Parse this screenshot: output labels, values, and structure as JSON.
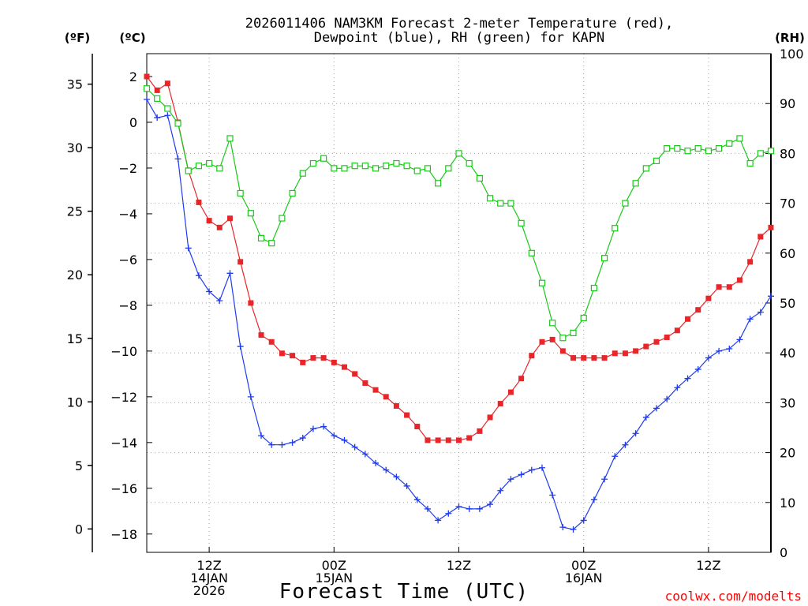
{
  "title_line1": "2026011406 NAM3KM Forecast 2-meter Temperature (red),",
  "title_line2": "Dewpoint (blue), RH (green) for KAPN",
  "unit_f": "(ºF)",
  "unit_c": "(ºC)",
  "unit_rh": "(RH)",
  "xlabel": "Forecast Time (UTC)",
  "credit": "coolwx.com/modelts",
  "colors": {
    "temperature": "#e8262a",
    "dewpoint": "#1f3bf0",
    "rh": "#19c919",
    "grid": "#a0a0a0"
  },
  "chart_data": {
    "type": "line",
    "title": "2026011406 NAM3KM Forecast 2-meter Temperature (red), Dewpoint (blue), RH (green) for KAPN",
    "xlabel": "Forecast Time (UTC)",
    "x_unit": "forecast hour (from 2026-01-14 06Z)",
    "xlim": [
      0,
      60
    ],
    "x_ticks": [
      {
        "x": 6,
        "lines": [
          "12Z",
          "14JAN",
          "2026"
        ]
      },
      {
        "x": 18,
        "lines": [
          "00Z",
          "15JAN"
        ]
      },
      {
        "x": 30,
        "lines": [
          "12Z"
        ]
      },
      {
        "x": 42,
        "lines": [
          "00Z",
          "16JAN"
        ]
      },
      {
        "x": 54,
        "lines": [
          "12Z"
        ]
      }
    ],
    "y_left_c": {
      "label": "(ºC)",
      "ylim": [
        -18.8,
        3.0
      ],
      "ticks": [
        2,
        0,
        -2,
        -4,
        -6,
        -8,
        -10,
        -12,
        -14,
        -16,
        -18
      ]
    },
    "y_left_f": {
      "label": "(ºF)",
      "ticks": [
        35,
        30,
        25,
        20,
        15,
        10,
        5,
        0
      ]
    },
    "y_right_rh": {
      "label": "(RH)",
      "ylim": [
        0,
        100
      ],
      "ticks": [
        100,
        90,
        80,
        70,
        60,
        50,
        40,
        30,
        20,
        10,
        0
      ]
    },
    "grid": true,
    "x": [
      0,
      1,
      2,
      3,
      4,
      5,
      6,
      7,
      8,
      9,
      10,
      11,
      12,
      13,
      14,
      15,
      16,
      17,
      18,
      19,
      20,
      21,
      22,
      23,
      24,
      25,
      26,
      27,
      28,
      29,
      30,
      31,
      32,
      33,
      34,
      35,
      36,
      37,
      38,
      39,
      40,
      41,
      42,
      43,
      44,
      45,
      46,
      47,
      48,
      49,
      50,
      51,
      52,
      53,
      54,
      55,
      56,
      57,
      58,
      59,
      60
    ],
    "series": [
      {
        "name": "Temperature",
        "units": "C",
        "marker": "filled-square",
        "values": [
          2.0,
          1.4,
          1.7,
          0.0,
          -2.1,
          -3.5,
          -4.3,
          -4.6,
          -4.2,
          -6.1,
          -7.9,
          -9.3,
          -9.6,
          -10.1,
          -10.2,
          -10.5,
          -10.3,
          -10.3,
          -10.5,
          -10.7,
          -11.0,
          -11.4,
          -11.7,
          -12.0,
          -12.4,
          -12.8,
          -13.3,
          -13.9,
          -13.9,
          -13.9,
          -13.9,
          -13.8,
          -13.5,
          -12.9,
          -12.3,
          -11.8,
          -11.2,
          -10.2,
          -9.6,
          -9.5,
          -10.0,
          -10.3,
          -10.3,
          -10.3,
          -10.3,
          -10.1,
          -10.1,
          -10.0,
          -9.8,
          -9.6,
          -9.4,
          -9.1,
          -8.6,
          -8.2,
          -7.7,
          -7.2,
          -7.2,
          -6.9,
          -6.1,
          -5.0,
          -4.6
        ]
      },
      {
        "name": "Dewpoint",
        "units": "C",
        "marker": "plus",
        "values": [
          1.0,
          0.2,
          0.3,
          -1.6,
          -5.5,
          -6.7,
          -7.4,
          -7.8,
          -6.6,
          -9.8,
          -12.0,
          -13.7,
          -14.1,
          -14.1,
          -14.0,
          -13.8,
          -13.4,
          -13.3,
          -13.7,
          -13.9,
          -14.2,
          -14.5,
          -14.9,
          -15.2,
          -15.5,
          -15.9,
          -16.5,
          -16.9,
          -17.4,
          -17.1,
          -16.8,
          -16.9,
          -16.9,
          -16.7,
          -16.1,
          -15.6,
          -15.4,
          -15.2,
          -15.1,
          -16.3,
          -17.7,
          -17.8,
          -17.4,
          -16.5,
          -15.6,
          -14.6,
          -14.1,
          -13.6,
          -12.9,
          -12.5,
          -12.1,
          -11.6,
          -11.2,
          -10.8,
          -10.3,
          -10.0,
          -9.9,
          -9.5,
          -8.6,
          -8.3,
          -7.6
        ]
      },
      {
        "name": "Relative Humidity",
        "units": "%",
        "marker": "open-square",
        "values": [
          93,
          91,
          89,
          86,
          76.5,
          77.5,
          78,
          77,
          83,
          72,
          68,
          63,
          62,
          67,
          72,
          76,
          78,
          79,
          77,
          77,
          77.5,
          77.5,
          77,
          77.5,
          78,
          77.5,
          76.5,
          77,
          74,
          77,
          80,
          78,
          75,
          71,
          70,
          70,
          66,
          60,
          54,
          46,
          43,
          44,
          47,
          53,
          59,
          65,
          70,
          74,
          77,
          78.5,
          81,
          81,
          80.5,
          81,
          80.5,
          81,
          82,
          83,
          78,
          80,
          80.5
        ]
      }
    ]
  }
}
